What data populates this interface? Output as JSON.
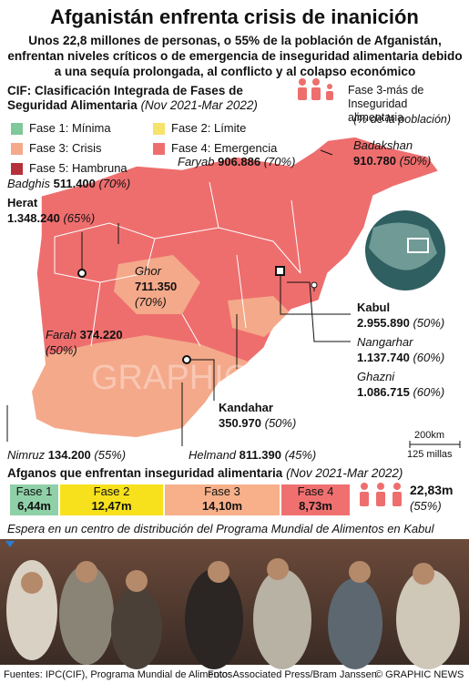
{
  "header": {
    "title": "Afganistán enfrenta crisis de inanición",
    "subtitle": "Unos 22,8 millones de personas, o 55% de la población de Afganistán, enfrentan niveles críticos o de emergencia de inseguridad alimentaria debido a una sequía prolongada, al conflicto y al colapso económico"
  },
  "legend": {
    "title": "CIF: Clasificación Integrada de Fases de Seguridad Alimentaria",
    "period": "(Nov 2021-Mar 2022)",
    "items": [
      {
        "label": "Fase 1: Mínima",
        "color": "#7fc89a"
      },
      {
        "label": "Fase 2: Límite",
        "color": "#f5e36b"
      },
      {
        "label": "Fase 3: Crisis",
        "color": "#f4a98a"
      },
      {
        "label": "Fase 4: Emergencia",
        "color": "#ee6e6e"
      },
      {
        "label": "Fase 5: Hambruna",
        "color": "#b5303a"
      }
    ]
  },
  "key": {
    "label": "Fase 3-más de Inseguridad alimentaria",
    "note": "(% de la población)"
  },
  "provinces": [
    {
      "name": "Badakshan",
      "value": "910.780",
      "pct": "(50%)"
    },
    {
      "name": "Faryab",
      "value": "906.886",
      "pct": "(70%)"
    },
    {
      "name": "Badghis",
      "value": "511.400",
      "pct": "(70%)"
    },
    {
      "name": "Herat",
      "value": "1.348.240",
      "pct": "(65%)"
    },
    {
      "name": "Ghor",
      "value": "711.350",
      "pct": "(70%)"
    },
    {
      "name": "Farah",
      "value": "374.220",
      "pct": "(50%)"
    },
    {
      "name": "Kabul",
      "value": "2.955.890",
      "pct": "(50%)"
    },
    {
      "name": "Nangarhar",
      "value": "1.137.740",
      "pct": "(60%)"
    },
    {
      "name": "Ghazni",
      "value": "1.086.715",
      "pct": "(60%)"
    },
    {
      "name": "Kandahar",
      "value": "350.970",
      "pct": "(50%)"
    },
    {
      "name": "Nimruz",
      "value": "134.200",
      "pct": "(55%)"
    },
    {
      "name": "Helmand",
      "value": "811.390",
      "pct": "(45%)"
    }
  ],
  "watermark": "GRAPHIC NEWS",
  "scale": {
    "km": "200km",
    "miles": "125 millas"
  },
  "summary": {
    "title": "Afganos que enfrentan inseguridad alimentaria",
    "period": "(Nov 2021-Mar 2022)",
    "phases": [
      {
        "label": "Fase 1",
        "value": "6,44m",
        "color": "#8fd0a8"
      },
      {
        "label": "Fase 2",
        "value": "12,47m",
        "color": "#f7e11c"
      },
      {
        "label": "Fase 3",
        "value": "14,10m",
        "color": "#f7b08a"
      },
      {
        "label": "Fase 4",
        "value": "8,73m",
        "color": "#f07070"
      }
    ],
    "total": "22,83m",
    "total_pct": "(55%)"
  },
  "photo": {
    "caption": "Espera en un centro de distribución del Programa Mundial de Alimentos en Kabul"
  },
  "footer": {
    "sources": "Fuentes: IPC(CIF), Programa Mundial de Alimentos",
    "photo_credit": "Foto: Associated Press/Bram Janssen",
    "credit": "© GRAPHIC NEWS"
  }
}
